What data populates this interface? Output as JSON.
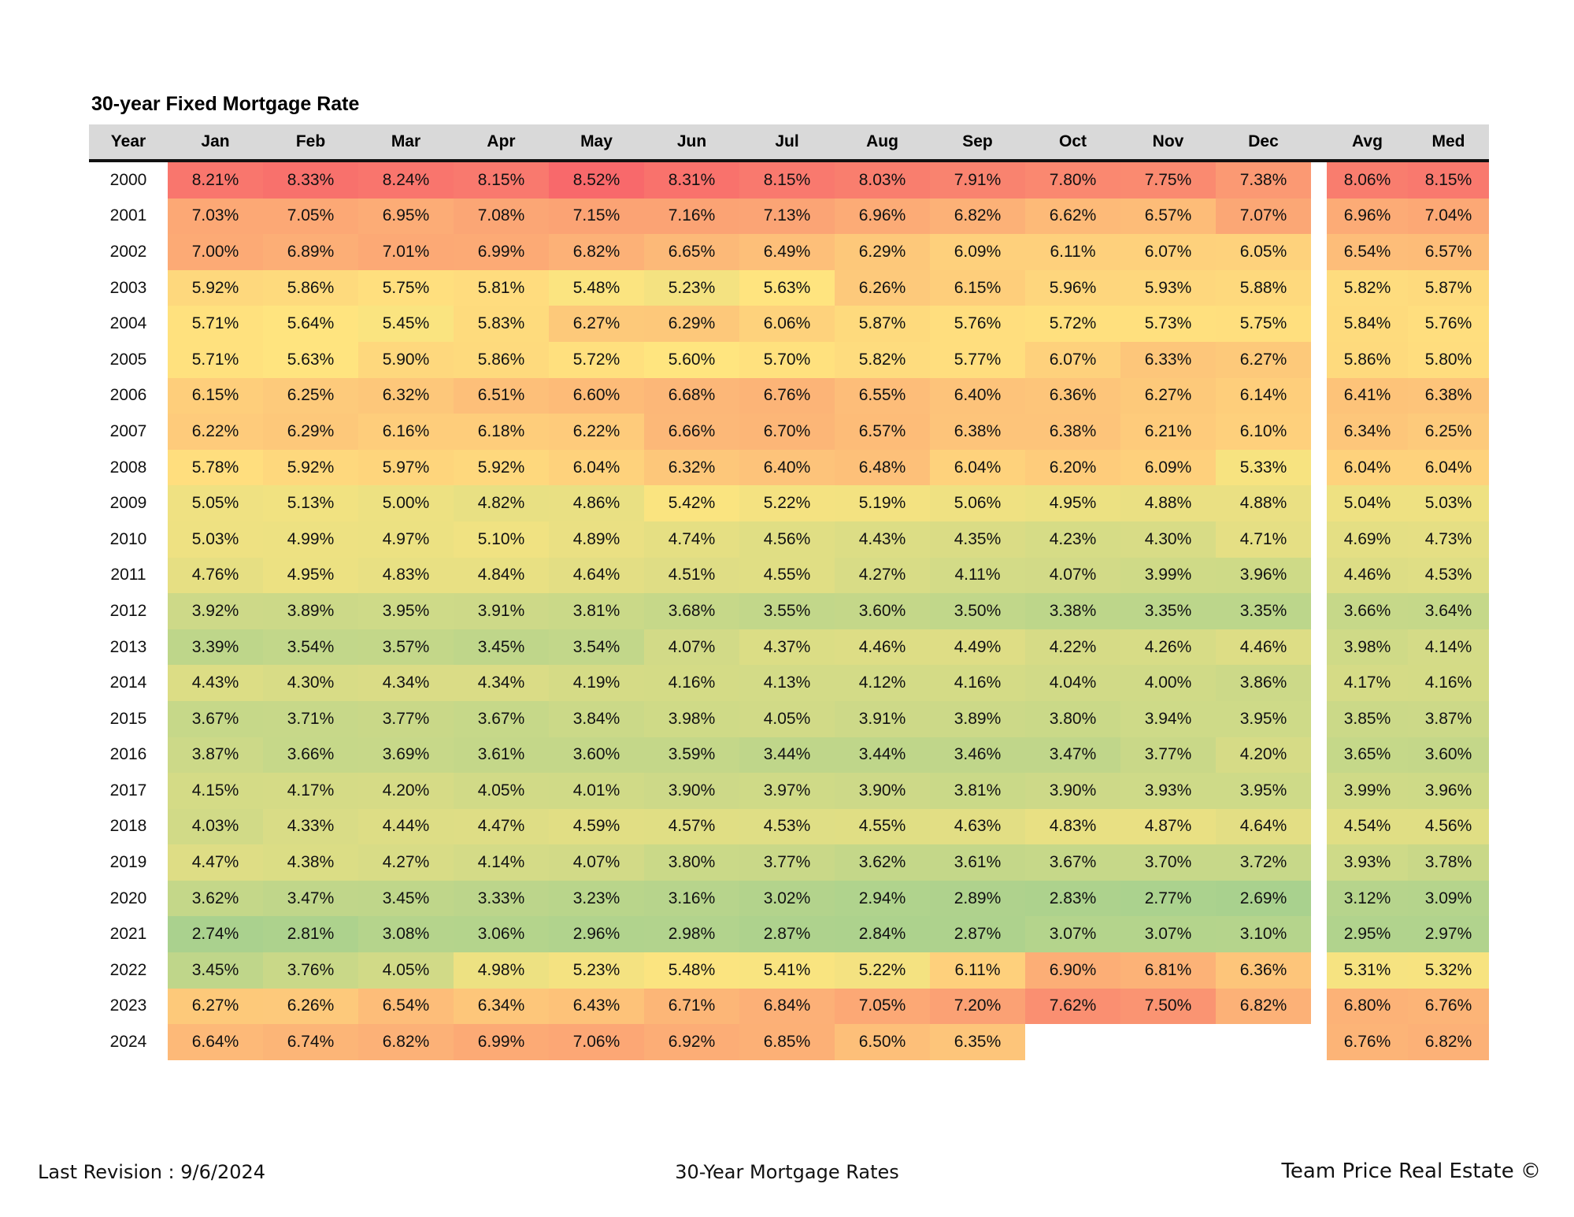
{
  "title": "30-year Fixed Mortgage Rate",
  "headers": [
    "Year",
    "Jan",
    "Feb",
    "Mar",
    "Apr",
    "May",
    "Jun",
    "Jul",
    "Aug",
    "Sep",
    "Oct",
    "Nov",
    "Dec",
    "Avg",
    "Med"
  ],
  "rows": [
    {
      "year": "2000",
      "months": [
        "8.21%",
        "8.33%",
        "8.24%",
        "8.15%",
        "8.52%",
        "8.31%",
        "8.15%",
        "8.03%",
        "7.91%",
        "7.80%",
        "7.75%",
        "7.38%"
      ],
      "avg": "8.06%",
      "med": "8.15%"
    },
    {
      "year": "2001",
      "months": [
        "7.03%",
        "7.05%",
        "6.95%",
        "7.08%",
        "7.15%",
        "7.16%",
        "7.13%",
        "6.96%",
        "6.82%",
        "6.62%",
        "6.57%",
        "7.07%"
      ],
      "avg": "6.96%",
      "med": "7.04%"
    },
    {
      "year": "2002",
      "months": [
        "7.00%",
        "6.89%",
        "7.01%",
        "6.99%",
        "6.82%",
        "6.65%",
        "6.49%",
        "6.29%",
        "6.09%",
        "6.11%",
        "6.07%",
        "6.05%"
      ],
      "avg": "6.54%",
      "med": "6.57%"
    },
    {
      "year": "2003",
      "months": [
        "5.92%",
        "5.86%",
        "5.75%",
        "5.81%",
        "5.48%",
        "5.23%",
        "5.63%",
        "6.26%",
        "6.15%",
        "5.96%",
        "5.93%",
        "5.88%"
      ],
      "avg": "5.82%",
      "med": "5.87%"
    },
    {
      "year": "2004",
      "months": [
        "5.71%",
        "5.64%",
        "5.45%",
        "5.83%",
        "6.27%",
        "6.29%",
        "6.06%",
        "5.87%",
        "5.76%",
        "5.72%",
        "5.73%",
        "5.75%"
      ],
      "avg": "5.84%",
      "med": "5.76%"
    },
    {
      "year": "2005",
      "months": [
        "5.71%",
        "5.63%",
        "5.90%",
        "5.86%",
        "5.72%",
        "5.60%",
        "5.70%",
        "5.82%",
        "5.77%",
        "6.07%",
        "6.33%",
        "6.27%"
      ],
      "avg": "5.86%",
      "med": "5.80%"
    },
    {
      "year": "2006",
      "months": [
        "6.15%",
        "6.25%",
        "6.32%",
        "6.51%",
        "6.60%",
        "6.68%",
        "6.76%",
        "6.55%",
        "6.40%",
        "6.36%",
        "6.27%",
        "6.14%"
      ],
      "avg": "6.41%",
      "med": "6.38%"
    },
    {
      "year": "2007",
      "months": [
        "6.22%",
        "6.29%",
        "6.16%",
        "6.18%",
        "6.22%",
        "6.66%",
        "6.70%",
        "6.57%",
        "6.38%",
        "6.38%",
        "6.21%",
        "6.10%"
      ],
      "avg": "6.34%",
      "med": "6.25%"
    },
    {
      "year": "2008",
      "months": [
        "5.78%",
        "5.92%",
        "5.97%",
        "5.92%",
        "6.04%",
        "6.32%",
        "6.40%",
        "6.48%",
        "6.04%",
        "6.20%",
        "6.09%",
        "5.33%"
      ],
      "avg": "6.04%",
      "med": "6.04%"
    },
    {
      "year": "2009",
      "months": [
        "5.05%",
        "5.13%",
        "5.00%",
        "4.82%",
        "4.86%",
        "5.42%",
        "5.22%",
        "5.19%",
        "5.06%",
        "4.95%",
        "4.88%",
        "4.88%"
      ],
      "avg": "5.04%",
      "med": "5.03%"
    },
    {
      "year": "2010",
      "months": [
        "5.03%",
        "4.99%",
        "4.97%",
        "5.10%",
        "4.89%",
        "4.74%",
        "4.56%",
        "4.43%",
        "4.35%",
        "4.23%",
        "4.30%",
        "4.71%"
      ],
      "avg": "4.69%",
      "med": "4.73%"
    },
    {
      "year": "2011",
      "months": [
        "4.76%",
        "4.95%",
        "4.83%",
        "4.84%",
        "4.64%",
        "4.51%",
        "4.55%",
        "4.27%",
        "4.11%",
        "4.07%",
        "3.99%",
        "3.96%"
      ],
      "avg": "4.46%",
      "med": "4.53%"
    },
    {
      "year": "2012",
      "months": [
        "3.92%",
        "3.89%",
        "3.95%",
        "3.91%",
        "3.81%",
        "3.68%",
        "3.55%",
        "3.60%",
        "3.50%",
        "3.38%",
        "3.35%",
        "3.35%"
      ],
      "avg": "3.66%",
      "med": "3.64%"
    },
    {
      "year": "2013",
      "months": [
        "3.39%",
        "3.54%",
        "3.57%",
        "3.45%",
        "3.54%",
        "4.07%",
        "4.37%",
        "4.46%",
        "4.49%",
        "4.22%",
        "4.26%",
        "4.46%"
      ],
      "avg": "3.98%",
      "med": "4.14%"
    },
    {
      "year": "2014",
      "months": [
        "4.43%",
        "4.30%",
        "4.34%",
        "4.34%",
        "4.19%",
        "4.16%",
        "4.13%",
        "4.12%",
        "4.16%",
        "4.04%",
        "4.00%",
        "3.86%"
      ],
      "avg": "4.17%",
      "med": "4.16%"
    },
    {
      "year": "2015",
      "months": [
        "3.67%",
        "3.71%",
        "3.77%",
        "3.67%",
        "3.84%",
        "3.98%",
        "4.05%",
        "3.91%",
        "3.89%",
        "3.80%",
        "3.94%",
        "3.95%"
      ],
      "avg": "3.85%",
      "med": "3.87%"
    },
    {
      "year": "2016",
      "months": [
        "3.87%",
        "3.66%",
        "3.69%",
        "3.61%",
        "3.60%",
        "3.59%",
        "3.44%",
        "3.44%",
        "3.46%",
        "3.47%",
        "3.77%",
        "4.20%"
      ],
      "avg": "3.65%",
      "med": "3.60%"
    },
    {
      "year": "2017",
      "months": [
        "4.15%",
        "4.17%",
        "4.20%",
        "4.05%",
        "4.01%",
        "3.90%",
        "3.97%",
        "3.90%",
        "3.81%",
        "3.90%",
        "3.93%",
        "3.95%"
      ],
      "avg": "3.99%",
      "med": "3.96%"
    },
    {
      "year": "2018",
      "months": [
        "4.03%",
        "4.33%",
        "4.44%",
        "4.47%",
        "4.59%",
        "4.57%",
        "4.53%",
        "4.55%",
        "4.63%",
        "4.83%",
        "4.87%",
        "4.64%"
      ],
      "avg": "4.54%",
      "med": "4.56%"
    },
    {
      "year": "2019",
      "months": [
        "4.47%",
        "4.38%",
        "4.27%",
        "4.14%",
        "4.07%",
        "3.80%",
        "3.77%",
        "3.62%",
        "3.61%",
        "3.67%",
        "3.70%",
        "3.72%"
      ],
      "avg": "3.93%",
      "med": "3.78%"
    },
    {
      "year": "2020",
      "months": [
        "3.62%",
        "3.47%",
        "3.45%",
        "3.33%",
        "3.23%",
        "3.16%",
        "3.02%",
        "2.94%",
        "2.89%",
        "2.83%",
        "2.77%",
        "2.69%"
      ],
      "avg": "3.12%",
      "med": "3.09%"
    },
    {
      "year": "2021",
      "months": [
        "2.74%",
        "2.81%",
        "3.08%",
        "3.06%",
        "2.96%",
        "2.98%",
        "2.87%",
        "2.84%",
        "2.87%",
        "3.07%",
        "3.07%",
        "3.10%"
      ],
      "avg": "2.95%",
      "med": "2.97%"
    },
    {
      "year": "2022",
      "months": [
        "3.45%",
        "3.76%",
        "4.05%",
        "4.98%",
        "5.23%",
        "5.48%",
        "5.41%",
        "5.22%",
        "6.11%",
        "6.90%",
        "6.81%",
        "6.36%"
      ],
      "avg": "5.31%",
      "med": "5.32%"
    },
    {
      "year": "2023",
      "months": [
        "6.27%",
        "6.26%",
        "6.54%",
        "6.34%",
        "6.43%",
        "6.71%",
        "6.84%",
        "7.05%",
        "7.20%",
        "7.62%",
        "7.50%",
        "6.82%"
      ],
      "avg": "6.80%",
      "med": "6.76%"
    },
    {
      "year": "2024",
      "months": [
        "6.64%",
        "6.74%",
        "6.82%",
        "6.99%",
        "7.06%",
        "6.92%",
        "6.85%",
        "6.50%",
        "6.35%",
        "",
        "",
        ""
      ],
      "avg": "6.76%",
      "med": "6.82%"
    }
  ],
  "colors": {
    "low": "#a9d18e",
    "mid": "#ffe57f",
    "high": "#f8696b",
    "header_bg": "#d9d9d9"
  },
  "footer": {
    "left": "Last Revision : 9/6/2024",
    "center": "30-Year Mortgage Rates",
    "right": "Team Price Real Estate ©"
  }
}
